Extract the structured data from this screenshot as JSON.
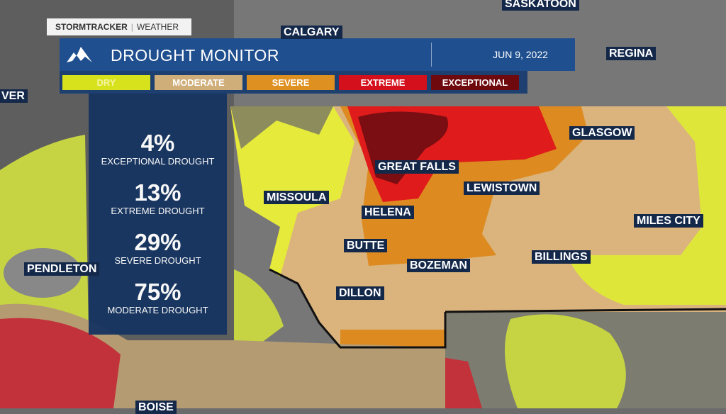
{
  "brand": {
    "name": "STORMTRACKER",
    "section": "WEATHER"
  },
  "header": {
    "title": "DROUGHT MONITOR",
    "date": "JUN 9, 2022",
    "icon": "mountain-icon"
  },
  "legend": [
    {
      "label": "DRY",
      "color": "#d7e21c"
    },
    {
      "label": "MODERATE",
      "color": "#cfae7a"
    },
    {
      "label": "SEVERE",
      "color": "#de9020"
    },
    {
      "label": "EXTREME",
      "color": "#d4101c"
    },
    {
      "label": "EXCEPTIONAL",
      "color": "#6e0a0e"
    }
  ],
  "stats": [
    {
      "value": "4%",
      "label": "EXCEPTIONAL DROUGHT"
    },
    {
      "value": "13%",
      "label": "EXTREME DROUGHT"
    },
    {
      "value": "29%",
      "label": "SEVERE DROUGHT"
    },
    {
      "value": "75%",
      "label": "MODERATE DROUGHT"
    }
  ],
  "cities": [
    "SASKATOON",
    "CALGARY",
    "REGINA",
    "VER",
    "GLASGOW",
    "GREAT FALLS",
    "LEWISTOWN",
    "MISSOULA",
    "HELENA",
    "MILES CITY",
    "BUTTE",
    "BILLINGS",
    "BOZEMAN",
    "PENDLETON",
    "DILLON",
    "BOISE"
  ]
}
